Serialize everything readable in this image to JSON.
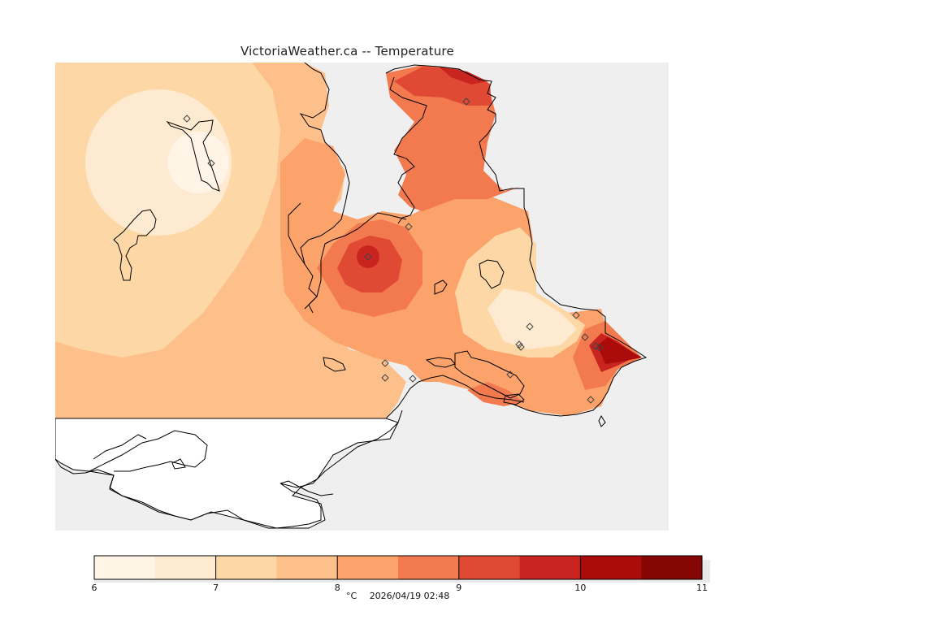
{
  "title": "VictoriaWeather.ca -- Temperature",
  "colorbar": {
    "colors": [
      "#fff4e6",
      "#feead0",
      "#fdd8a6",
      "#fdc08a",
      "#fba36a",
      "#f37a4f",
      "#e04a35",
      "#c9241f",
      "#ab0b0b",
      "#860606"
    ],
    "tick_labels": [
      "6",
      "7",
      "8",
      "9",
      "10",
      "11"
    ],
    "min": 6,
    "max": 11,
    "step": 0.5
  },
  "footer": {
    "unit": "°C",
    "timestamp": "2026/04/19 02:48"
  },
  "map_colors": {
    "sea_background": "#efefef",
    "land_nodata": "#ffffff",
    "coastline": "#000000",
    "station_marker": "#444444"
  },
  "stations_count": 20
}
